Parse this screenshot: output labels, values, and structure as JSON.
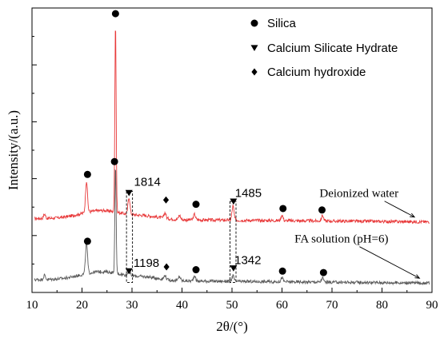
{
  "chart_data": {
    "type": "line",
    "xlabel": "2θ/(°)",
    "ylabel": "Intensity/(a.u.)",
    "xlim": [
      10,
      90
    ],
    "xticks": [
      "10",
      "20",
      "30",
      "40",
      "50",
      "60",
      "70",
      "80",
      "90"
    ],
    "y_tick_labels": "none",
    "grid": false,
    "legend_position": "top-right",
    "legend": [
      {
        "marker": "circle",
        "label": "Silica"
      },
      {
        "marker": "triangle-down",
        "label": "Calcium Silicate Hydrate"
      },
      {
        "marker": "diamond",
        "label": "Calcium hydroxide"
      }
    ],
    "series": [
      {
        "name": "Deionized water",
        "color": "#e8393a",
        "baseline": 0.52,
        "peaks": [
          {
            "x": 12.5,
            "h": 0.03
          },
          {
            "x": 20.9,
            "h": 0.22
          },
          {
            "x": 26.7,
            "h": 1.34
          },
          {
            "x": 29.4,
            "h": 0.12
          },
          {
            "x": 36.6,
            "h": 0.04
          },
          {
            "x": 39.5,
            "h": 0.03
          },
          {
            "x": 42.5,
            "h": 0.04
          },
          {
            "x": 50.2,
            "h": 0.1
          },
          {
            "x": 60.0,
            "h": 0.04
          },
          {
            "x": 68.1,
            "h": 0.04
          }
        ]
      },
      {
        "name": "FA solution (pH=6)",
        "color": "#5a5a5a",
        "baseline": 0.09,
        "peaks": [
          {
            "x": 12.5,
            "h": 0.03
          },
          {
            "x": 20.9,
            "h": 0.22
          },
          {
            "x": 26.7,
            "h": 0.75
          },
          {
            "x": 29.4,
            "h": 0.04
          },
          {
            "x": 36.6,
            "h": 0.03
          },
          {
            "x": 39.5,
            "h": 0.03
          },
          {
            "x": 42.5,
            "h": 0.04
          },
          {
            "x": 50.2,
            "h": 0.04
          },
          {
            "x": 60.0,
            "h": 0.03
          },
          {
            "x": 68.1,
            "h": 0.03
          }
        ]
      }
    ],
    "phase_markers": [
      {
        "phase": "circle",
        "x": 26.7,
        "y": 1.96,
        "series": "Deionized water"
      },
      {
        "phase": "circle",
        "x": 21.1,
        "y": 0.83,
        "series": "Deionized water"
      },
      {
        "phase": "triangle-down",
        "x": 29.4,
        "y": 0.7,
        "series": "Deionized water"
      },
      {
        "phase": "diamond",
        "x": 36.8,
        "y": 0.65,
        "series": "Deionized water"
      },
      {
        "phase": "circle",
        "x": 42.8,
        "y": 0.62,
        "series": "Deionized water"
      },
      {
        "phase": "triangle-down",
        "x": 50.3,
        "y": 0.64,
        "series": "Deionized water"
      },
      {
        "phase": "circle",
        "x": 60.2,
        "y": 0.59,
        "series": "Deionized water"
      },
      {
        "phase": "circle",
        "x": 68.0,
        "y": 0.58,
        "series": "Deionized water"
      },
      {
        "phase": "circle",
        "x": 26.5,
        "y": 0.92,
        "series": "FA solution (pH=6)"
      },
      {
        "phase": "circle",
        "x": 21.1,
        "y": 0.36,
        "series": "FA solution (pH=6)"
      },
      {
        "phase": "triangle-down",
        "x": 29.4,
        "y": 0.15,
        "series": "FA solution (pH=6)"
      },
      {
        "phase": "diamond",
        "x": 36.9,
        "y": 0.18,
        "series": "FA solution (pH=6)"
      },
      {
        "phase": "circle",
        "x": 42.8,
        "y": 0.16,
        "series": "FA solution (pH=6)"
      },
      {
        "phase": "triangle-down",
        "x": 50.3,
        "y": 0.17,
        "series": "FA solution (pH=6)"
      },
      {
        "phase": "circle",
        "x": 60.1,
        "y": 0.15,
        "series": "FA solution (pH=6)"
      },
      {
        "phase": "circle",
        "x": 68.3,
        "y": 0.14,
        "series": "FA solution (pH=6)"
      }
    ],
    "boxes": [
      {
        "x0": 28.9,
        "x1": 30.1,
        "y0": 0.07,
        "y1": 0.71
      },
      {
        "x0": 49.6,
        "x1": 50.8,
        "y0": 0.07,
        "y1": 0.64
      }
    ],
    "annotations": [
      {
        "text": "1814",
        "x": 30.4,
        "y": 0.75
      },
      {
        "text": "1485",
        "x": 50.6,
        "y": 0.67
      },
      {
        "text": "1198",
        "x": 30.3,
        "y": 0.18
      },
      {
        "text": "1342",
        "x": 50.5,
        "y": 0.2
      }
    ],
    "series_labels": [
      {
        "text": "Deionized water",
        "x": 67.5,
        "y": 0.67,
        "arrow_to": [
          86.5,
          0.53
        ]
      },
      {
        "text": "FA solution (pH=6)",
        "x": 62.5,
        "y": 0.35,
        "arrow_to": [
          87.5,
          0.1
        ]
      }
    ]
  }
}
